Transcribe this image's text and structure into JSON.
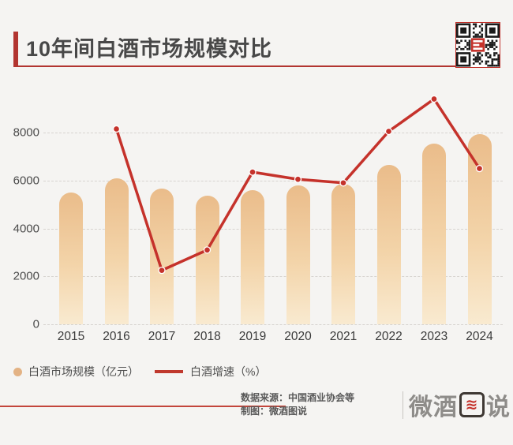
{
  "header": {
    "title": "10年间白酒市场规模对比"
  },
  "chart_data": {
    "type": "bar+line combo",
    "categories": [
      "2015",
      "2016",
      "2017",
      "2018",
      "2019",
      "2020",
      "2021",
      "2022",
      "2023",
      "2024"
    ],
    "series": [
      {
        "name": "白酒市场规模（亿元）",
        "type": "bar",
        "values": [
          5500,
          6100,
          5650,
          5350,
          5600,
          5800,
          5850,
          6650,
          7550,
          7950
        ]
      },
      {
        "name": "白酒增速（%）",
        "type": "line",
        "values": [
          null,
          8150,
          2250,
          3100,
          6350,
          6050,
          5900,
          8050,
          9400,
          6500
        ],
        "note": "no secondary axis shown; point positions estimated in left-axis units"
      }
    ],
    "title": "10年间白酒市场规模对比",
    "xlabel": "",
    "ylabel": "",
    "yticks": [
      0,
      2000,
      4000,
      6000,
      8000
    ],
    "ylim": [
      0,
      9900
    ],
    "grid": "horizontal dashed",
    "legend_position": "bottom-left"
  },
  "legend": {
    "bar_label": "白酒市场规模（亿元）",
    "line_label": "白酒增速（%）"
  },
  "footer": {
    "source": "数据来源：中国酒业协会等",
    "credit": "制图：微酒图说",
    "logo_prefix": "微酒",
    "logo_wave": "≋",
    "logo_suffix": "说"
  },
  "colors": {
    "background": "#f5f4f2",
    "accent_red": "#b23530",
    "line_red": "#c5322b",
    "bar_gradient_top": "#eabc8a",
    "bar_gradient_bottom": "#f9ead0",
    "legend_dot": "#e3b284",
    "title_text": "#484848",
    "axis_text": "#4c4c4c"
  }
}
